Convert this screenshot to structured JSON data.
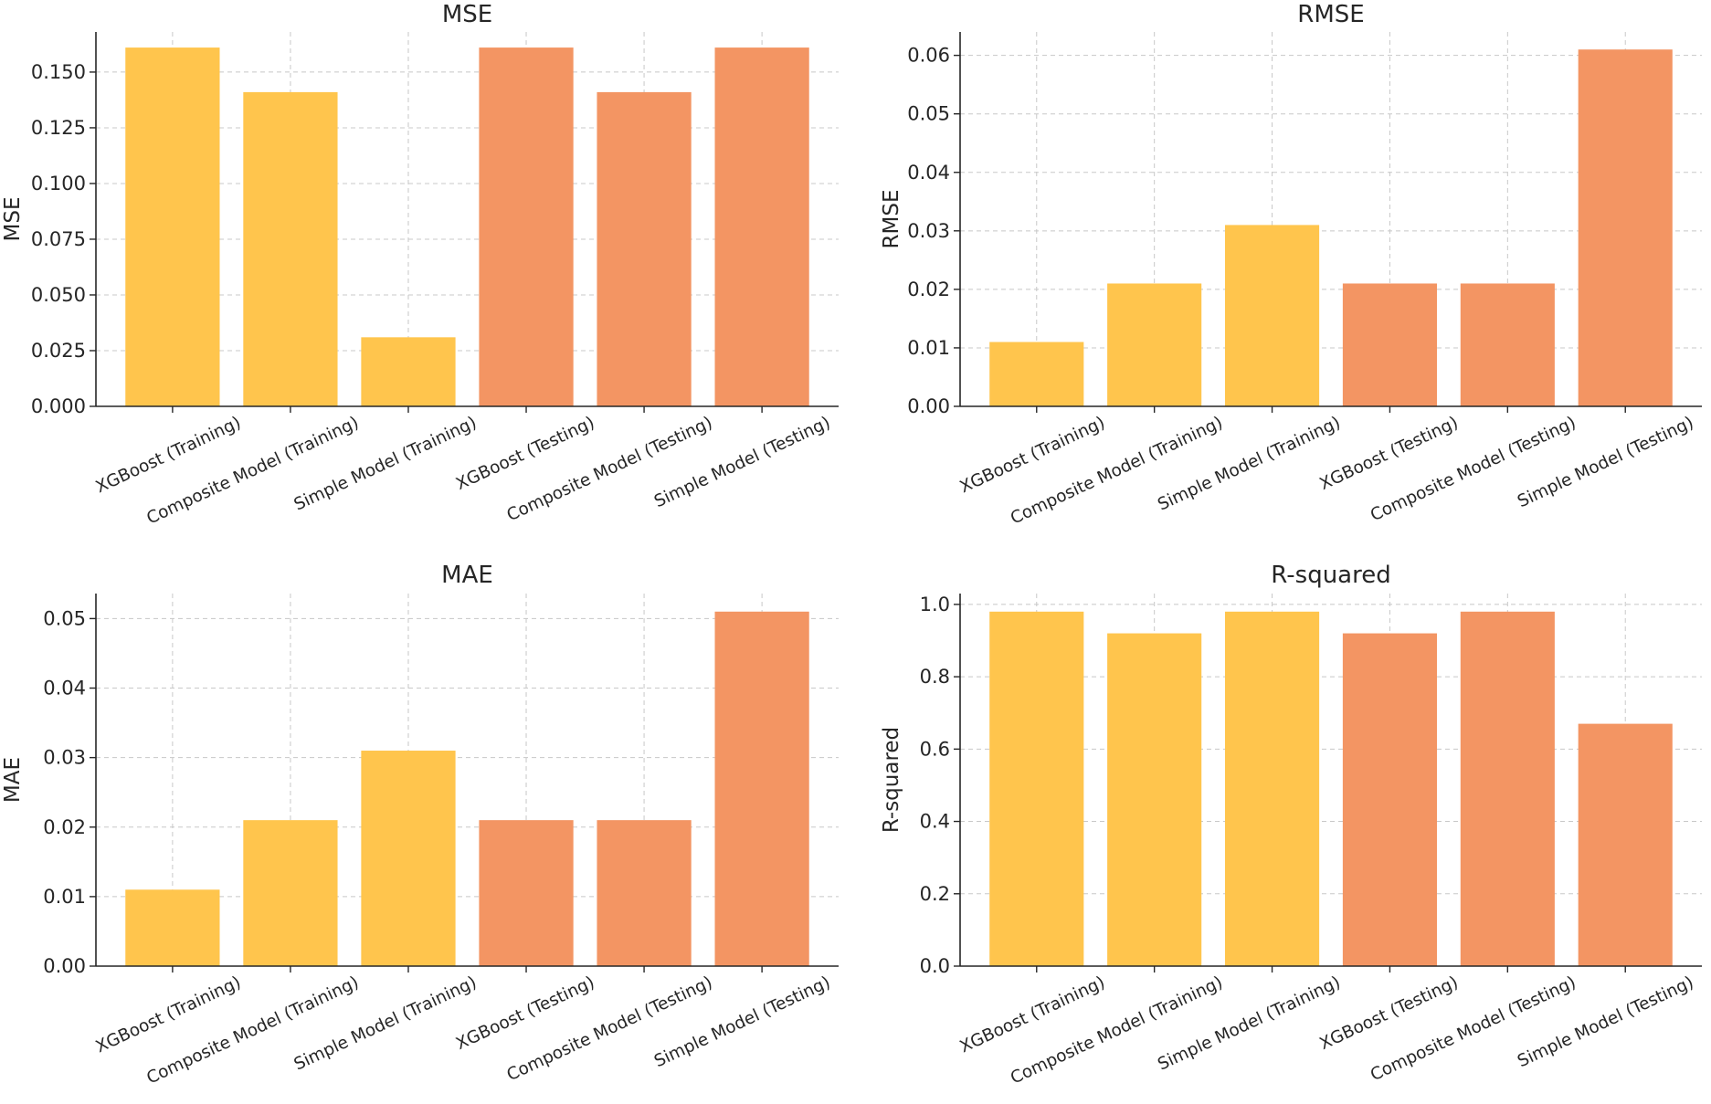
{
  "chart_data": [
    {
      "type": "bar",
      "title": "MSE",
      "xlabel": "",
      "ylabel": "MSE",
      "categories": [
        "XGBoost (Training)",
        "Composite Model (Training)",
        "Simple Model (Training)",
        "XGBoost (Testing)",
        "Composite Model (Testing)",
        "Simple Model (Testing)"
      ],
      "values": [
        0.161,
        0.141,
        0.031,
        0.161,
        0.141,
        0.161
      ],
      "bar_colors": [
        "#FFC54D",
        "#FFC54D",
        "#FFC54D",
        "#F39563",
        "#F39563",
        "#F39563"
      ],
      "ylim": [
        0,
        0.168
      ],
      "yticks": [
        "0.000",
        "0.025",
        "0.050",
        "0.075",
        "0.100",
        "0.125",
        "0.150"
      ],
      "grid": true
    },
    {
      "type": "bar",
      "title": "RMSE",
      "xlabel": "",
      "ylabel": "RMSE",
      "categories": [
        "XGBoost (Training)",
        "Composite Model (Training)",
        "Simple Model (Training)",
        "XGBoost (Testing)",
        "Composite Model (Testing)",
        "Simple Model (Testing)"
      ],
      "values": [
        0.011,
        0.021,
        0.031,
        0.021,
        0.021,
        0.061
      ],
      "bar_colors": [
        "#FFC54D",
        "#FFC54D",
        "#FFC54D",
        "#F39563",
        "#F39563",
        "#F39563"
      ],
      "ylim": [
        0,
        0.064
      ],
      "yticks": [
        "0.00",
        "0.01",
        "0.02",
        "0.03",
        "0.04",
        "0.05",
        "0.06"
      ],
      "grid": true
    },
    {
      "type": "bar",
      "title": "MAE",
      "xlabel": "",
      "ylabel": "MAE",
      "categories": [
        "XGBoost (Training)",
        "Composite Model (Training)",
        "Simple Model (Training)",
        "XGBoost (Testing)",
        "Composite Model (Testing)",
        "Simple Model (Testing)"
      ],
      "values": [
        0.011,
        0.021,
        0.031,
        0.021,
        0.021,
        0.051
      ],
      "bar_colors": [
        "#FFC54D",
        "#FFC54D",
        "#FFC54D",
        "#F39563",
        "#F39563",
        "#F39563"
      ],
      "ylim": [
        0,
        0.0536
      ],
      "yticks": [
        "0.00",
        "0.01",
        "0.02",
        "0.03",
        "0.04",
        "0.05"
      ],
      "grid": true
    },
    {
      "type": "bar",
      "title": "R-squared",
      "xlabel": "",
      "ylabel": "R-squared",
      "categories": [
        "XGBoost (Training)",
        "Composite Model (Training)",
        "Simple Model (Training)",
        "XGBoost (Testing)",
        "Composite Model (Testing)",
        "Simple Model (Testing)"
      ],
      "values": [
        0.98,
        0.92,
        0.98,
        0.92,
        0.98,
        0.67
      ],
      "bar_colors": [
        "#FFC54D",
        "#FFC54D",
        "#FFC54D",
        "#F39563",
        "#F39563",
        "#F39563"
      ],
      "ylim": [
        0,
        1.03
      ],
      "yticks": [
        "0.0",
        "0.2",
        "0.4",
        "0.6",
        "0.8",
        "1.0"
      ],
      "grid": true
    }
  ]
}
